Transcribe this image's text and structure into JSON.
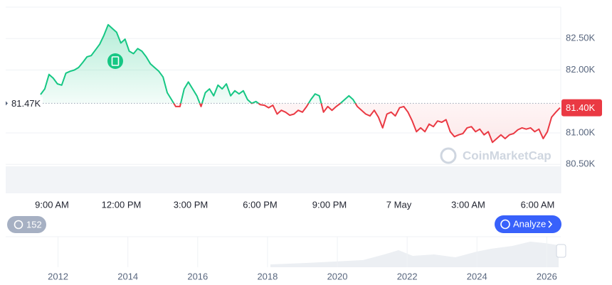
{
  "chart_data": {
    "type": "line",
    "watermark": "CoinMarketCap",
    "x_labels": [
      "9:00 AM",
      "12:00 PM",
      "3:00 PM",
      "6:00 PM",
      "9:00 PM",
      "7 May",
      "3:00 AM",
      "6:00 AM"
    ],
    "values": [
      81610,
      81700,
      81930,
      81870,
      81780,
      81760,
      81950,
      81980,
      82000,
      82040,
      82120,
      82210,
      82230,
      82320,
      82410,
      82550,
      82720,
      82660,
      82600,
      82430,
      82490,
      82300,
      82260,
      82340,
      82300,
      82210,
      82100,
      82040,
      81980,
      81890,
      81640,
      81530,
      81420,
      81420,
      81700,
      81810,
      81700,
      81590,
      81420,
      81640,
      81700,
      81590,
      81760,
      81700,
      81780,
      81590,
      81670,
      81620,
      81670,
      81530,
      81470,
      81500,
      81450,
      81440,
      81400,
      81440,
      81300,
      81360,
      81330,
      81280,
      81300,
      81360,
      81330,
      81420,
      81530,
      81620,
      81590,
      81330,
      81420,
      81360,
      81420,
      81470,
      81530,
      81590,
      81530,
      81420,
      81360,
      81300,
      81270,
      81360,
      81250,
      81080,
      81300,
      81330,
      81270,
      81400,
      81420,
      81330,
      81190,
      81020,
      81080,
      81020,
      81140,
      81100,
      81190,
      81170,
      81210,
      81020,
      80940,
      80970,
      80990,
      81080,
      81100,
      81020,
      81060,
      80970,
      81020,
      80850,
      80910,
      80970,
      80910,
      80970,
      80990,
      81050,
      81080,
      81060,
      81080,
      81020,
      81060,
      80910,
      81020,
      81250,
      81330,
      81400
    ],
    "up_color": "#16c784",
    "down_color": "#ea3943",
    "baseline": {
      "value": 81470,
      "label": "81.47K"
    },
    "last_price": {
      "value": 81400,
      "label": "81.40K"
    },
    "ylim": [
      80040,
      83000
    ],
    "yticks": [
      {
        "value": 80500,
        "label": "80.50K"
      },
      {
        "value": 81000,
        "label": "81.00K"
      },
      {
        "value": 82000,
        "label": "82.00K"
      },
      {
        "value": 82500,
        "label": "82.50K"
      }
    ],
    "grid": true,
    "history_count": 152,
    "analyze_button": "Analyze",
    "navigator_xlim": [
      2010.5,
      2026.4
    ],
    "navigator_xticks": [
      2012,
      2014,
      2016,
      2018,
      2020,
      2022,
      2024,
      2026
    ]
  }
}
